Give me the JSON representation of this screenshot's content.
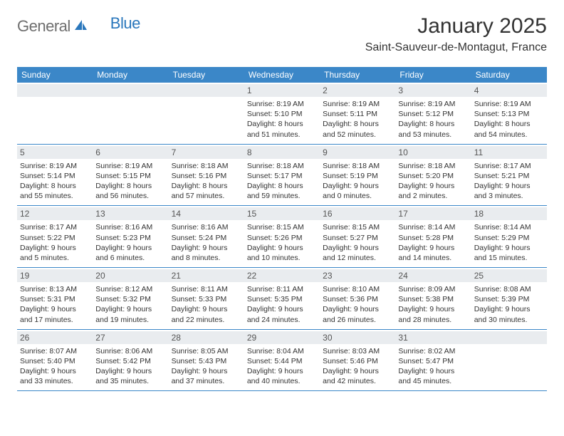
{
  "logo": {
    "text1": "General",
    "text2": "Blue"
  },
  "title": "January 2025",
  "location": "Saint-Sauveur-de-Montagut, France",
  "colors": {
    "header_bg": "#3b87c8",
    "header_text": "#ffffff",
    "daynum_bg": "#e9ecef",
    "body_text": "#333333",
    "logo_gray": "#6e6e6e",
    "logo_blue": "#2a77bc",
    "border": "#3b87c8"
  },
  "day_names": [
    "Sunday",
    "Monday",
    "Tuesday",
    "Wednesday",
    "Thursday",
    "Friday",
    "Saturday"
  ],
  "weeks": [
    [
      {
        "num": "",
        "sunrise": "",
        "sunset": "",
        "daylight": ""
      },
      {
        "num": "",
        "sunrise": "",
        "sunset": "",
        "daylight": ""
      },
      {
        "num": "",
        "sunrise": "",
        "sunset": "",
        "daylight": ""
      },
      {
        "num": "1",
        "sunrise": "Sunrise: 8:19 AM",
        "sunset": "Sunset: 5:10 PM",
        "daylight": "Daylight: 8 hours and 51 minutes."
      },
      {
        "num": "2",
        "sunrise": "Sunrise: 8:19 AM",
        "sunset": "Sunset: 5:11 PM",
        "daylight": "Daylight: 8 hours and 52 minutes."
      },
      {
        "num": "3",
        "sunrise": "Sunrise: 8:19 AM",
        "sunset": "Sunset: 5:12 PM",
        "daylight": "Daylight: 8 hours and 53 minutes."
      },
      {
        "num": "4",
        "sunrise": "Sunrise: 8:19 AM",
        "sunset": "Sunset: 5:13 PM",
        "daylight": "Daylight: 8 hours and 54 minutes."
      }
    ],
    [
      {
        "num": "5",
        "sunrise": "Sunrise: 8:19 AM",
        "sunset": "Sunset: 5:14 PM",
        "daylight": "Daylight: 8 hours and 55 minutes."
      },
      {
        "num": "6",
        "sunrise": "Sunrise: 8:19 AM",
        "sunset": "Sunset: 5:15 PM",
        "daylight": "Daylight: 8 hours and 56 minutes."
      },
      {
        "num": "7",
        "sunrise": "Sunrise: 8:18 AM",
        "sunset": "Sunset: 5:16 PM",
        "daylight": "Daylight: 8 hours and 57 minutes."
      },
      {
        "num": "8",
        "sunrise": "Sunrise: 8:18 AM",
        "sunset": "Sunset: 5:17 PM",
        "daylight": "Daylight: 8 hours and 59 minutes."
      },
      {
        "num": "9",
        "sunrise": "Sunrise: 8:18 AM",
        "sunset": "Sunset: 5:19 PM",
        "daylight": "Daylight: 9 hours and 0 minutes."
      },
      {
        "num": "10",
        "sunrise": "Sunrise: 8:18 AM",
        "sunset": "Sunset: 5:20 PM",
        "daylight": "Daylight: 9 hours and 2 minutes."
      },
      {
        "num": "11",
        "sunrise": "Sunrise: 8:17 AM",
        "sunset": "Sunset: 5:21 PM",
        "daylight": "Daylight: 9 hours and 3 minutes."
      }
    ],
    [
      {
        "num": "12",
        "sunrise": "Sunrise: 8:17 AM",
        "sunset": "Sunset: 5:22 PM",
        "daylight": "Daylight: 9 hours and 5 minutes."
      },
      {
        "num": "13",
        "sunrise": "Sunrise: 8:16 AM",
        "sunset": "Sunset: 5:23 PM",
        "daylight": "Daylight: 9 hours and 6 minutes."
      },
      {
        "num": "14",
        "sunrise": "Sunrise: 8:16 AM",
        "sunset": "Sunset: 5:24 PM",
        "daylight": "Daylight: 9 hours and 8 minutes."
      },
      {
        "num": "15",
        "sunrise": "Sunrise: 8:15 AM",
        "sunset": "Sunset: 5:26 PM",
        "daylight": "Daylight: 9 hours and 10 minutes."
      },
      {
        "num": "16",
        "sunrise": "Sunrise: 8:15 AM",
        "sunset": "Sunset: 5:27 PM",
        "daylight": "Daylight: 9 hours and 12 minutes."
      },
      {
        "num": "17",
        "sunrise": "Sunrise: 8:14 AM",
        "sunset": "Sunset: 5:28 PM",
        "daylight": "Daylight: 9 hours and 14 minutes."
      },
      {
        "num": "18",
        "sunrise": "Sunrise: 8:14 AM",
        "sunset": "Sunset: 5:29 PM",
        "daylight": "Daylight: 9 hours and 15 minutes."
      }
    ],
    [
      {
        "num": "19",
        "sunrise": "Sunrise: 8:13 AM",
        "sunset": "Sunset: 5:31 PM",
        "daylight": "Daylight: 9 hours and 17 minutes."
      },
      {
        "num": "20",
        "sunrise": "Sunrise: 8:12 AM",
        "sunset": "Sunset: 5:32 PM",
        "daylight": "Daylight: 9 hours and 19 minutes."
      },
      {
        "num": "21",
        "sunrise": "Sunrise: 8:11 AM",
        "sunset": "Sunset: 5:33 PM",
        "daylight": "Daylight: 9 hours and 22 minutes."
      },
      {
        "num": "22",
        "sunrise": "Sunrise: 8:11 AM",
        "sunset": "Sunset: 5:35 PM",
        "daylight": "Daylight: 9 hours and 24 minutes."
      },
      {
        "num": "23",
        "sunrise": "Sunrise: 8:10 AM",
        "sunset": "Sunset: 5:36 PM",
        "daylight": "Daylight: 9 hours and 26 minutes."
      },
      {
        "num": "24",
        "sunrise": "Sunrise: 8:09 AM",
        "sunset": "Sunset: 5:38 PM",
        "daylight": "Daylight: 9 hours and 28 minutes."
      },
      {
        "num": "25",
        "sunrise": "Sunrise: 8:08 AM",
        "sunset": "Sunset: 5:39 PM",
        "daylight": "Daylight: 9 hours and 30 minutes."
      }
    ],
    [
      {
        "num": "26",
        "sunrise": "Sunrise: 8:07 AM",
        "sunset": "Sunset: 5:40 PM",
        "daylight": "Daylight: 9 hours and 33 minutes."
      },
      {
        "num": "27",
        "sunrise": "Sunrise: 8:06 AM",
        "sunset": "Sunset: 5:42 PM",
        "daylight": "Daylight: 9 hours and 35 minutes."
      },
      {
        "num": "28",
        "sunrise": "Sunrise: 8:05 AM",
        "sunset": "Sunset: 5:43 PM",
        "daylight": "Daylight: 9 hours and 37 minutes."
      },
      {
        "num": "29",
        "sunrise": "Sunrise: 8:04 AM",
        "sunset": "Sunset: 5:44 PM",
        "daylight": "Daylight: 9 hours and 40 minutes."
      },
      {
        "num": "30",
        "sunrise": "Sunrise: 8:03 AM",
        "sunset": "Sunset: 5:46 PM",
        "daylight": "Daylight: 9 hours and 42 minutes."
      },
      {
        "num": "31",
        "sunrise": "Sunrise: 8:02 AM",
        "sunset": "Sunset: 5:47 PM",
        "daylight": "Daylight: 9 hours and 45 minutes."
      },
      {
        "num": "",
        "sunrise": "",
        "sunset": "",
        "daylight": ""
      }
    ]
  ]
}
